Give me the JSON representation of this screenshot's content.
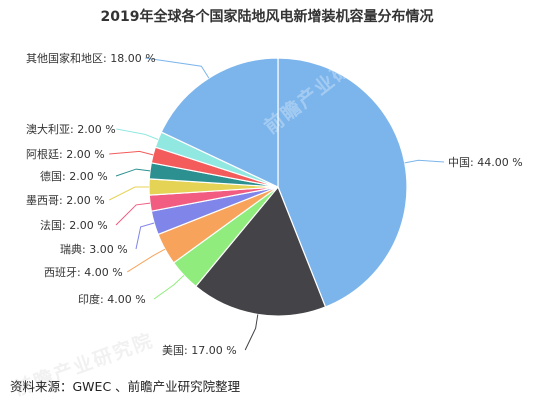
{
  "chart_data": {
    "type": "pie",
    "title": "2019年全球各个国家陆地风电新增装机容量分布情况",
    "slices": [
      {
        "label": "中国",
        "value": 44.0,
        "text": "中国: 44.00 %",
        "color": "#7cb5ec"
      },
      {
        "label": "美国",
        "value": 17.0,
        "text": "美国: 17.00 %",
        "color": "#434348"
      },
      {
        "label": "印度",
        "value": 4.0,
        "text": "印度: 4.00 %",
        "color": "#90ed7d"
      },
      {
        "label": "西班牙",
        "value": 4.0,
        "text": "西班牙: 4.00 %",
        "color": "#f7a35c"
      },
      {
        "label": "瑞典",
        "value": 3.0,
        "text": "瑞典: 3.00 %",
        "color": "#8085e9"
      },
      {
        "label": "法国",
        "value": 2.0,
        "text": "法国: 2.00 %",
        "color": "#f15c80"
      },
      {
        "label": "墨西哥",
        "value": 2.0,
        "text": "墨西哥: 2.00 %",
        "color": "#e4d354"
      },
      {
        "label": "德国",
        "value": 2.0,
        "text": "德国: 2.00 %",
        "color": "#2b908f"
      },
      {
        "label": "阿根廷",
        "value": 2.0,
        "text": "阿根廷: 2.00 %",
        "color": "#f45b5b"
      },
      {
        "label": "澳大利亚",
        "value": 2.0,
        "text": "澳大利亚: 2.00 %",
        "color": "#91e8e1"
      },
      {
        "label": "其他国家和地区",
        "value": 18.0,
        "text": "其他国家和地区: 18.00 %",
        "color": "#7cb5ec"
      }
    ],
    "start_angle": "12 o'clock",
    "direction": "clockwise",
    "legend": "none (callout labels)"
  },
  "source_note": "资料来源：GWEC 、前瞻产业研究院整理",
  "watermark": "前瞻产业研究院"
}
